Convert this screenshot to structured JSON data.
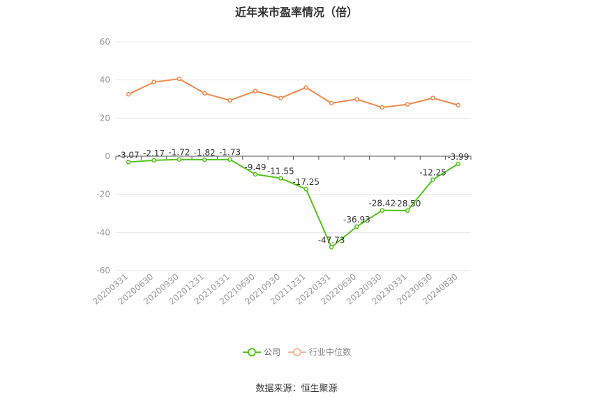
{
  "chart_data": {
    "type": "line",
    "title": "近年来市盈率情况（倍）",
    "categories": [
      "20200331",
      "20200630",
      "20200930",
      "20201231",
      "20210331",
      "20210630",
      "20210930",
      "20211231",
      "20220331",
      "20220630",
      "20220930",
      "20230331",
      "20230630",
      "20240830"
    ],
    "series": [
      {
        "name": "公司",
        "color": "#52c41a",
        "values": [
          -3.07,
          -2.17,
          -1.72,
          -1.82,
          -1.73,
          -9.49,
          -11.55,
          -17.25,
          -47.73,
          -36.93,
          -28.42,
          -28.5,
          -12.25,
          -3.99
        ],
        "labels": [
          "-3.07",
          "-2.17",
          "-1.72",
          "-1.82",
          "-1.73",
          "-9.49",
          "-11.55",
          "-17.25",
          "-47.73",
          "-36.93",
          "-28.42",
          "-28.50",
          "-12.25",
          "-3.99"
        ]
      },
      {
        "name": "行业中位数",
        "color": "#f4874b",
        "values": [
          32.5,
          38.9,
          40.6,
          33.0,
          29.3,
          34.2,
          30.5,
          36.1,
          27.8,
          29.9,
          25.6,
          27.2,
          30.5,
          26.8
        ]
      }
    ],
    "ylim": [
      -60,
      60
    ],
    "yticks": [
      "60",
      "40",
      "20",
      "0",
      "-20",
      "-40",
      "-60"
    ],
    "grid": true,
    "legend": "bottom"
  },
  "footer": {
    "source": "数据来源：恒生聚源"
  }
}
